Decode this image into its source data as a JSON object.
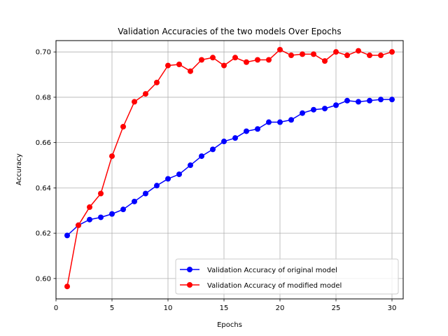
{
  "chart_data": {
    "type": "line",
    "title": "Validation Accuracies of the two models Over Epochs",
    "xlabel": "Epochs",
    "ylabel": "Accuracy",
    "xlim": [
      0,
      31
    ],
    "ylim": [
      0.591,
      0.705
    ],
    "xticks": [
      0,
      5,
      10,
      15,
      20,
      25,
      30
    ],
    "yticks": [
      0.6,
      0.62,
      0.64,
      0.66,
      0.68,
      0.7
    ],
    "ytick_labels": [
      "0.60",
      "0.62",
      "0.64",
      "0.66",
      "0.68",
      "0.70"
    ],
    "grid": true,
    "legend_position": "lower-right",
    "x": [
      1,
      2,
      3,
      4,
      5,
      6,
      7,
      8,
      9,
      10,
      11,
      12,
      13,
      14,
      15,
      16,
      17,
      18,
      19,
      20,
      21,
      22,
      23,
      24,
      25,
      26,
      27,
      28,
      29,
      30
    ],
    "series": [
      {
        "name": "Validation Accuracy of original model",
        "color": "#0000ff",
        "marker": "circle",
        "values": [
          0.619,
          0.6235,
          0.626,
          0.627,
          0.6285,
          0.6305,
          0.634,
          0.6375,
          0.641,
          0.644,
          0.646,
          0.65,
          0.654,
          0.657,
          0.6605,
          0.662,
          0.665,
          0.666,
          0.669,
          0.669,
          0.67,
          0.673,
          0.6745,
          0.675,
          0.6765,
          0.6785,
          0.678,
          0.6785,
          0.679,
          0.679
        ]
      },
      {
        "name": "Validation Accuracy of modified model",
        "color": "#ff0000",
        "marker": "circle",
        "values": [
          0.5965,
          0.6235,
          0.6315,
          0.6375,
          0.654,
          0.667,
          0.678,
          0.6815,
          0.6865,
          0.694,
          0.6945,
          0.6915,
          0.6965,
          0.6975,
          0.694,
          0.6975,
          0.6955,
          0.6965,
          0.6965,
          0.701,
          0.6985,
          0.699,
          0.699,
          0.696,
          0.7,
          0.6985,
          0.7005,
          0.6985,
          0.6985,
          0.7
        ]
      }
    ]
  }
}
